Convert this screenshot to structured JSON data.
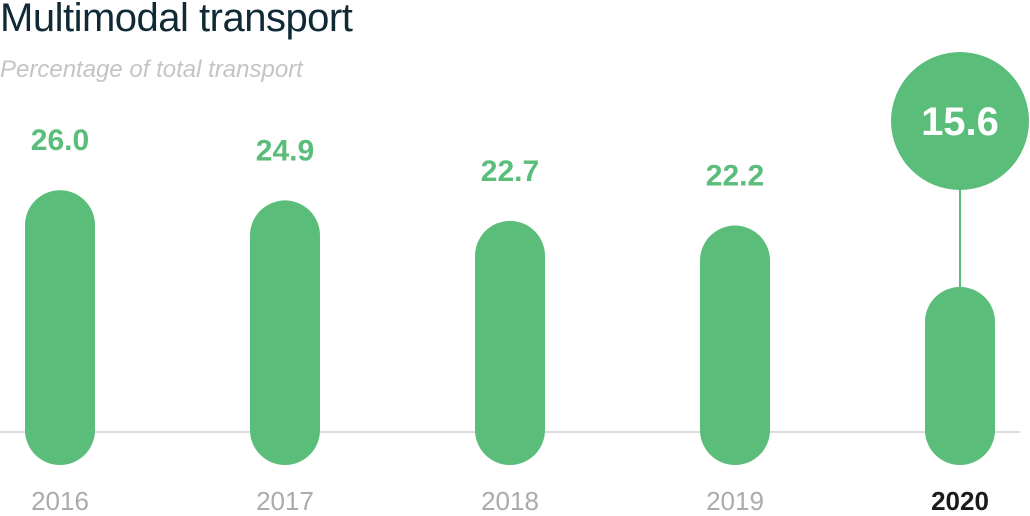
{
  "chart_data": {
    "type": "bar",
    "title": "Multimodal transport",
    "subtitle": "Percentage of total transport",
    "xlabel": "",
    "ylabel": "",
    "categories": [
      "2016",
      "2017",
      "2018",
      "2019",
      "2020"
    ],
    "values": [
      26.0,
      24.9,
      22.7,
      22.2,
      15.6
    ],
    "value_labels": [
      "26.0",
      "24.9",
      "22.7",
      "22.2",
      "15.6"
    ],
    "highlight_category": "2020",
    "grid": false,
    "legend": "none",
    "colors": {
      "bar": "#5bbd7a",
      "baseline": "#dcdcdc",
      "highlight_label": "#ffffff",
      "category_label": "#a9abad",
      "highlight_category_label": "#1a1a1a"
    }
  }
}
